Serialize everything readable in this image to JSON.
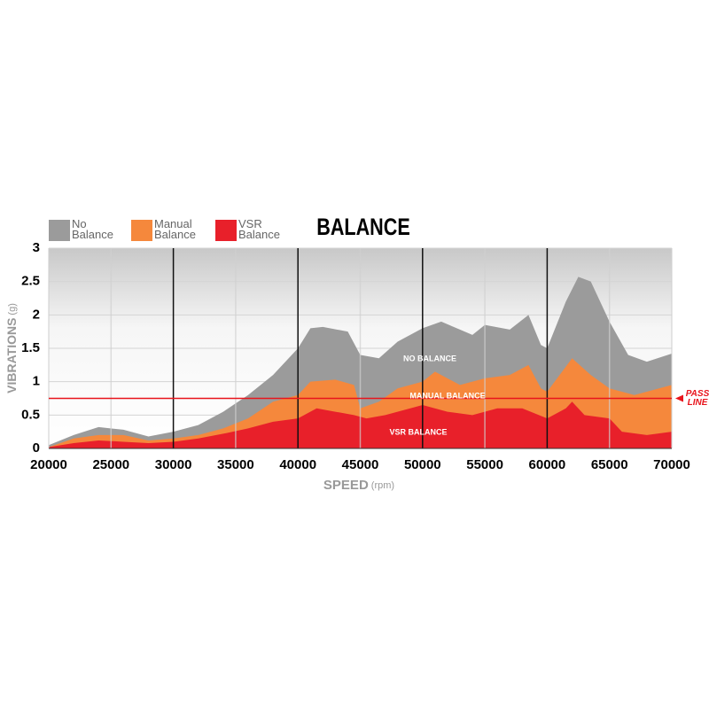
{
  "chart_data": {
    "type": "area",
    "title": "BALANCE",
    "x_label": "SPEED",
    "x_unit": "(rpm)",
    "y_label": "VIBRATIONS",
    "y_unit": "(g)",
    "xlim": [
      20000,
      70000
    ],
    "xticks": [
      20000,
      25000,
      30000,
      35000,
      40000,
      45000,
      50000,
      55000,
      60000,
      65000,
      70000
    ],
    "ylim": [
      0,
      3
    ],
    "yticks": [
      0,
      0.5,
      1,
      1.5,
      2,
      2.5,
      3
    ],
    "grid": true,
    "pass_line": {
      "value": 0.75,
      "label": "PASS LINE",
      "color": "#e8141c"
    },
    "series": [
      {
        "name": "No Balance",
        "color": "#9b9b9b",
        "annotation": "NO BALANCE",
        "x": [
          20000,
          22000,
          24000,
          26000,
          28000,
          30000,
          32000,
          34000,
          36000,
          38000,
          40000,
          41000,
          42000,
          44000,
          45000,
          46500,
          48000,
          50000,
          51500,
          53000,
          54000,
          55000,
          57000,
          58500,
          59500,
          60000,
          61500,
          62500,
          63500,
          65000,
          66500,
          68000,
          70000
        ],
        "values": [
          0.05,
          0.2,
          0.32,
          0.28,
          0.18,
          0.25,
          0.35,
          0.55,
          0.8,
          1.1,
          1.5,
          1.8,
          1.82,
          1.75,
          1.4,
          1.35,
          1.6,
          1.8,
          1.9,
          1.78,
          1.7,
          1.85,
          1.78,
          2.0,
          1.55,
          1.5,
          2.2,
          2.57,
          2.5,
          1.9,
          1.4,
          1.3,
          1.42
        ]
      },
      {
        "name": "Manual Balance",
        "color": "#f5883c",
        "annotation": "MANUAL BALANCE",
        "x": [
          20000,
          22000,
          24000,
          26000,
          28000,
          30000,
          32000,
          34000,
          36000,
          38000,
          40000,
          41000,
          43000,
          44500,
          45000,
          46500,
          48000,
          50000,
          51000,
          53000,
          55000,
          57000,
          58500,
          59500,
          60000,
          62000,
          63500,
          65000,
          67000,
          70000
        ],
        "values": [
          0.02,
          0.15,
          0.2,
          0.2,
          0.12,
          0.15,
          0.2,
          0.3,
          0.45,
          0.7,
          0.8,
          1.0,
          1.03,
          0.95,
          0.6,
          0.7,
          0.9,
          1.0,
          1.15,
          0.95,
          1.05,
          1.1,
          1.25,
          0.9,
          0.85,
          1.35,
          1.1,
          0.9,
          0.8,
          0.95
        ]
      },
      {
        "name": "VSR Balance",
        "color": "#e8202a",
        "annotation": "VSR BALANCE",
        "x": [
          20000,
          22000,
          24000,
          26000,
          28000,
          30000,
          32000,
          34000,
          36000,
          38000,
          40000,
          41500,
          43000,
          44500,
          45500,
          47000,
          50000,
          52000,
          54000,
          56000,
          58000,
          60000,
          61500,
          62000,
          63000,
          65000,
          66000,
          68000,
          70000
        ],
        "values": [
          0.02,
          0.08,
          0.12,
          0.1,
          0.08,
          0.1,
          0.15,
          0.22,
          0.3,
          0.4,
          0.45,
          0.6,
          0.55,
          0.5,
          0.45,
          0.5,
          0.65,
          0.55,
          0.5,
          0.6,
          0.6,
          0.45,
          0.6,
          0.7,
          0.5,
          0.45,
          0.25,
          0.2,
          0.25
        ]
      }
    ]
  }
}
